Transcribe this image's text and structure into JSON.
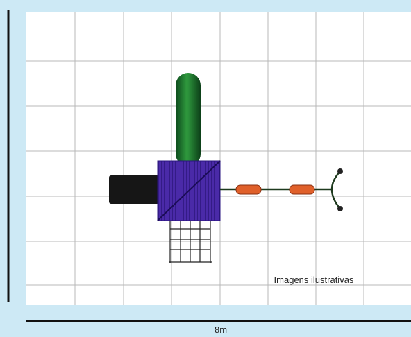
{
  "caption": "Imagens ilustrativas",
  "scale_label": "8m"
}
